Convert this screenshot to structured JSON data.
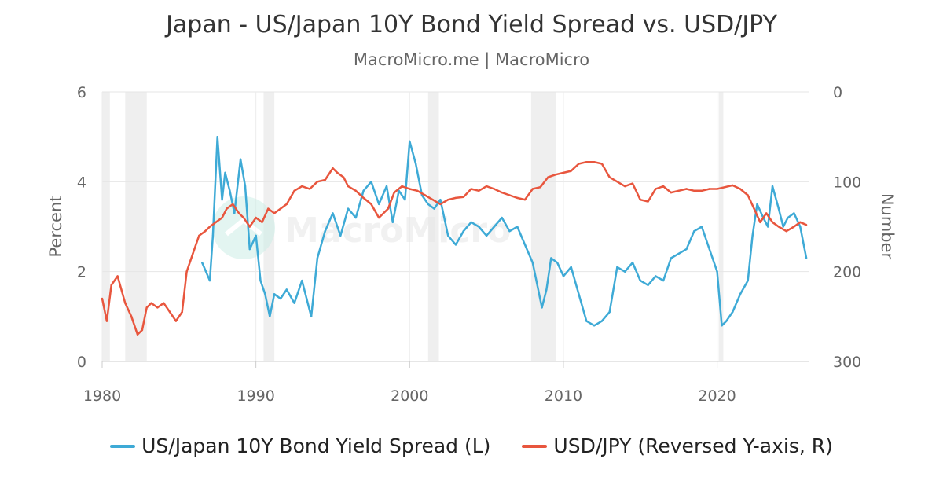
{
  "chart_data": {
    "type": "line",
    "title": "Japan - US/Japan 10Y Bond Yield Spread vs. USD/JPY",
    "subtitle": "MacroMicro.me | MacroMicro",
    "watermark": "MacroMicro",
    "ylabel_left": "Percent",
    "ylabel_right": "Number",
    "ylim_left": [
      0,
      6
    ],
    "ylim_right": [
      0,
      300
    ],
    "right_axis_reversed": true,
    "xlim": [
      1980,
      2026
    ],
    "x_ticks": [
      "1980",
      "1990",
      "2000",
      "2010",
      "2020"
    ],
    "y_ticks_left": [
      "0",
      "2",
      "4",
      "6"
    ],
    "y_ticks_right": [
      "0",
      "100",
      "200",
      "300"
    ],
    "grid": true,
    "legend_position": "bottom-center",
    "recessions": [
      [
        1980.0,
        1980.5
      ],
      [
        1981.5,
        1982.9
      ],
      [
        1990.5,
        1991.2
      ],
      [
        2001.2,
        2001.9
      ],
      [
        2007.9,
        2009.5
      ],
      [
        2020.1,
        2020.4
      ]
    ],
    "series": [
      {
        "name": "US/Japan 10Y Bond Yield Spread (L)",
        "axis": "left",
        "color": "#3eaad6",
        "x": [
          1986.5,
          1987.0,
          1987.2,
          1987.5,
          1987.8,
          1988.0,
          1988.3,
          1988.6,
          1989.0,
          1989.3,
          1989.6,
          1990.0,
          1990.3,
          1990.6,
          1990.9,
          1991.2,
          1991.6,
          1992.0,
          1992.5,
          1993.0,
          1993.3,
          1993.6,
          1994.0,
          1994.5,
          1995.0,
          1995.5,
          1996.0,
          1996.5,
          1997.0,
          1997.5,
          1998.0,
          1998.5,
          1998.9,
          1999.3,
          1999.7,
          2000.0,
          2000.4,
          2000.8,
          2001.2,
          2001.6,
          2002.0,
          2002.5,
          2003.0,
          2003.5,
          2004.0,
          2004.5,
          2005.0,
          2005.5,
          2006.0,
          2006.5,
          2007.0,
          2007.5,
          2008.0,
          2008.3,
          2008.6,
          2008.9,
          2009.2,
          2009.6,
          2010.0,
          2010.5,
          2011.0,
          2011.5,
          2012.0,
          2012.5,
          2013.0,
          2013.5,
          2014.0,
          2014.5,
          2015.0,
          2015.5,
          2016.0,
          2016.5,
          2017.0,
          2017.5,
          2018.0,
          2018.5,
          2019.0,
          2019.5,
          2020.0,
          2020.3,
          2020.6,
          2021.0,
          2021.5,
          2022.0,
          2022.3,
          2022.6,
          2023.0,
          2023.3,
          2023.6,
          2024.0,
          2024.3,
          2024.6,
          2025.0,
          2025.4,
          2025.8
        ],
        "values": [
          2.2,
          1.8,
          2.8,
          5.0,
          3.6,
          4.2,
          3.8,
          3.3,
          4.5,
          3.9,
          2.5,
          2.8,
          1.8,
          1.5,
          1.0,
          1.5,
          1.4,
          1.6,
          1.3,
          1.8,
          1.4,
          1.0,
          2.3,
          2.9,
          3.3,
          2.8,
          3.4,
          3.2,
          3.8,
          4.0,
          3.5,
          3.9,
          3.1,
          3.8,
          3.6,
          4.9,
          4.4,
          3.7,
          3.5,
          3.4,
          3.6,
          2.8,
          2.6,
          2.9,
          3.1,
          3.0,
          2.8,
          3.0,
          3.2,
          2.9,
          3.0,
          2.6,
          2.2,
          1.7,
          1.2,
          1.6,
          2.3,
          2.2,
          1.9,
          2.1,
          1.5,
          0.9,
          0.8,
          0.9,
          1.1,
          2.1,
          2.0,
          2.2,
          1.8,
          1.7,
          1.9,
          1.8,
          2.3,
          2.4,
          2.5,
          2.9,
          3.0,
          2.5,
          2.0,
          0.8,
          0.9,
          1.1,
          1.5,
          1.8,
          2.8,
          3.5,
          3.2,
          3.0,
          3.9,
          3.4,
          3.0,
          3.2,
          3.3,
          3.0,
          2.3
        ]
      },
      {
        "name": "USD/JPY (Reversed Y-axis, R)",
        "axis": "right",
        "color": "#e8563e",
        "x": [
          1980.0,
          1980.3,
          1980.6,
          1981.0,
          1981.5,
          1981.9,
          1982.3,
          1982.6,
          1982.9,
          1983.2,
          1983.6,
          1984.0,
          1984.4,
          1984.8,
          1985.2,
          1985.5,
          1985.9,
          1986.3,
          1986.7,
          1987.0,
          1987.4,
          1987.8,
          1988.1,
          1988.5,
          1988.9,
          1989.2,
          1989.6,
          1990.0,
          1990.4,
          1990.8,
          1991.2,
          1991.6,
          1992.0,
          1992.5,
          1993.0,
          1993.5,
          1994.0,
          1994.5,
          1995.0,
          1995.3,
          1995.7,
          1996.0,
          1996.5,
          1997.0,
          1997.5,
          1998.0,
          1998.6,
          1999.0,
          1999.5,
          2000.0,
          2000.5,
          2001.0,
          2001.5,
          2002.0,
          2002.5,
          2003.0,
          2003.5,
          2004.0,
          2004.5,
          2005.0,
          2005.5,
          2006.0,
          2006.5,
          2007.0,
          2007.5,
          2008.0,
          2008.5,
          2009.0,
          2009.5,
          2010.0,
          2010.5,
          2011.0,
          2011.5,
          2012.0,
          2012.5,
          2013.0,
          2013.5,
          2014.0,
          2014.5,
          2015.0,
          2015.5,
          2016.0,
          2016.5,
          2017.0,
          2017.5,
          2018.0,
          2018.5,
          2019.0,
          2019.5,
          2020.0,
          2020.5,
          2021.0,
          2021.5,
          2022.0,
          2022.4,
          2022.8,
          2023.2,
          2023.6,
          2024.0,
          2024.5,
          2025.0,
          2025.4,
          2025.8
        ],
        "values": [
          230,
          255,
          215,
          205,
          235,
          250,
          270,
          265,
          240,
          235,
          240,
          235,
          245,
          255,
          245,
          200,
          180,
          160,
          155,
          150,
          145,
          140,
          130,
          125,
          135,
          140,
          150,
          140,
          145,
          130,
          135,
          130,
          125,
          110,
          105,
          108,
          100,
          98,
          85,
          90,
          95,
          105,
          110,
          118,
          125,
          140,
          130,
          112,
          105,
          108,
          110,
          115,
          120,
          125,
          120,
          118,
          117,
          108,
          110,
          105,
          108,
          112,
          115,
          118,
          120,
          108,
          106,
          95,
          92,
          90,
          88,
          80,
          78,
          78,
          80,
          95,
          100,
          105,
          102,
          120,
          122,
          108,
          105,
          112,
          110,
          108,
          110,
          110,
          108,
          108,
          106,
          104,
          108,
          115,
          130,
          145,
          135,
          145,
          150,
          155,
          150,
          145,
          148
        ]
      }
    ]
  }
}
